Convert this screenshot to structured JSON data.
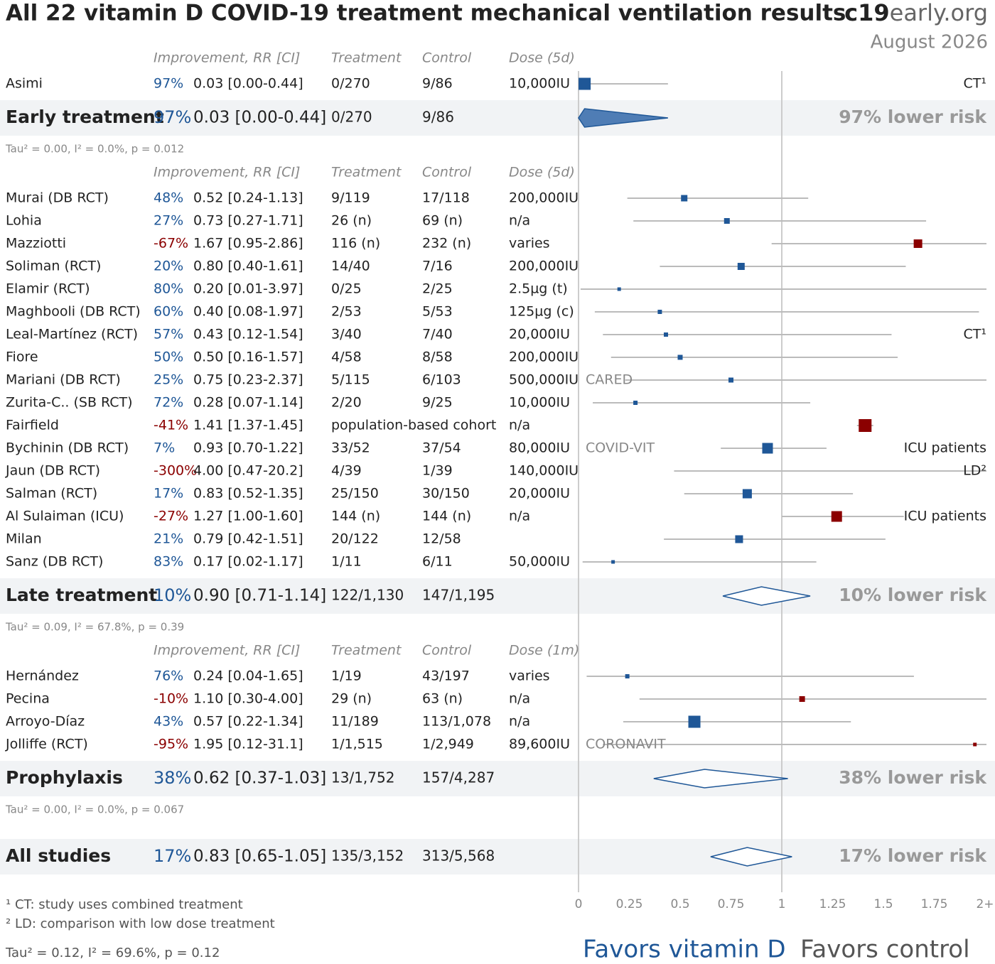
{
  "chart_data": {
    "type": "forest",
    "title": "All 22 vitamin D COVID-19 treatment mechanical ventilation results",
    "site_bold": "c19",
    "site_rest": "early.org",
    "date": "August 2026",
    "xlim": [
      0,
      2
    ],
    "xticks": [
      0,
      0.25,
      0.5,
      0.75,
      1,
      1.25,
      1.5,
      1.75,
      {
        "value": 2,
        "label": "2+"
      }
    ],
    "colors": {
      "favor": "#1f5797",
      "against": "#8b0000",
      "ci": "#bbbbbb"
    },
    "groups": [
      {
        "headers": [
          "Improvement, RR [CI]",
          "Treatment",
          "Control",
          "Dose (5d)"
        ],
        "studies": [
          {
            "name": "Asimi",
            "improvement": "97%",
            "rr": 0.03,
            "lo": 0.0,
            "hi": 0.44,
            "label": "0.03 [0.00-0.44]",
            "treatment": "0/270",
            "control": "9/86",
            "dose": "10,000IU",
            "remark": "CT¹",
            "weight": 17
          }
        ],
        "summary": {
          "name": "Early treatment",
          "improvement": "97%",
          "rr": 0.03,
          "lo": 0.0,
          "hi": 0.44,
          "label": "0.03 [0.00-0.44]",
          "treatment": "0/270",
          "control": "9/86",
          "risk": "97% lower risk"
        },
        "tau": "Tau² = 0.00, I² = 0.0%, p = 0.012"
      },
      {
        "headers": [
          "Improvement, RR [CI]",
          "Treatment",
          "Control",
          "Dose (5d)"
        ],
        "studies": [
          {
            "name": "Murai (DB RCT)",
            "improvement": "48%",
            "rr": 0.52,
            "lo": 0.24,
            "hi": 1.13,
            "label": "0.52 [0.24-1.13]",
            "treatment": "9/119",
            "control": "17/118",
            "dose": "200,000IU",
            "weight": 9
          },
          {
            "name": "Lohia",
            "improvement": "27%",
            "rr": 0.73,
            "lo": 0.27,
            "hi": 1.71,
            "label": "0.73 [0.27-1.71]",
            "treatment": "26 (n)",
            "control": "69 (n)",
            "dose": "n/a",
            "weight": 8
          },
          {
            "name": "Mazziotti",
            "improvement": "-67%",
            "rr": 1.67,
            "lo": 0.95,
            "hi": 2.86,
            "label": "1.67 [0.95-2.86]",
            "treatment": "116 (n)",
            "control": "232 (n)",
            "dose": "varies",
            "weight": 12
          },
          {
            "name": "Soliman (RCT)",
            "improvement": "20%",
            "rr": 0.8,
            "lo": 0.4,
            "hi": 1.61,
            "label": "0.80 [0.40-1.61]",
            "treatment": "14/40",
            "control": "7/16",
            "dose": "200,000IU",
            "weight": 10
          },
          {
            "name": "Elamir (RCT)",
            "improvement": "80%",
            "rr": 0.2,
            "lo": 0.01,
            "hi": 3.97,
            "label": "0.20 [0.01-3.97]",
            "treatment": "0/25",
            "control": "2/25",
            "dose": "2.5µg (t)",
            "weight": 5
          },
          {
            "name": "Maghbooli (DB RCT)",
            "improvement": "60%",
            "rr": 0.4,
            "lo": 0.08,
            "hi": 1.97,
            "label": "0.40 [0.08-1.97]",
            "treatment": "2/53",
            "control": "5/53",
            "dose": "125µg (c)",
            "weight": 6
          },
          {
            "name": "Leal-Martínez (RCT)",
            "improvement": "57%",
            "rr": 0.43,
            "lo": 0.12,
            "hi": 1.54,
            "label": "0.43 [0.12-1.54]",
            "treatment": "3/40",
            "control": "7/40",
            "dose": "20,000IU",
            "remark": "CT¹",
            "weight": 6
          },
          {
            "name": "Fiore",
            "improvement": "50%",
            "rr": 0.5,
            "lo": 0.16,
            "hi": 1.57,
            "label": "0.50 [0.16-1.57]",
            "treatment": "4/58",
            "control": "8/58",
            "dose": "200,000IU",
            "weight": 7
          },
          {
            "name": "Mariani (DB RCT)",
            "improvement": "25%",
            "rr": 0.75,
            "lo": 0.23,
            "hi": 2.37,
            "label": "0.75 [0.23-2.37]",
            "treatment": "5/115",
            "control": "6/103",
            "dose": "500,000IU",
            "note": "CARED",
            "weight": 7
          },
          {
            "name": "Zurita-C.. (SB RCT)",
            "improvement": "72%",
            "rr": 0.28,
            "lo": 0.07,
            "hi": 1.14,
            "label": "0.28 [0.07-1.14]",
            "treatment": "2/20",
            "control": "9/25",
            "dose": "10,000IU",
            "weight": 6
          },
          {
            "name": "Fairfield",
            "improvement": "-41%",
            "rr": 1.41,
            "lo": 1.37,
            "hi": 1.45,
            "label": "1.41 [1.37-1.45]",
            "treatment": "population-based cohort",
            "dose": "n/a",
            "weight": 18
          },
          {
            "name": "Bychinin (DB RCT)",
            "improvement": "7%",
            "rr": 0.93,
            "lo": 0.7,
            "hi": 1.22,
            "label": "0.93 [0.70-1.22]",
            "treatment": "33/52",
            "control": "37/54",
            "dose": "80,000IU",
            "note": "COVID-VIT",
            "remark": "ICU patients",
            "weight": 15
          },
          {
            "name": "Jaun (DB RCT)",
            "improvement": "-300%",
            "rr": 4.0,
            "lo": 0.47,
            "hi": 20.2,
            "label": "4.00 [0.47-20.2]",
            "treatment": "4/39",
            "control": "1/39",
            "dose": "140,000IU",
            "remark": "LD²",
            "weight": 5
          },
          {
            "name": "Salman (RCT)",
            "improvement": "17%",
            "rr": 0.83,
            "lo": 0.52,
            "hi": 1.35,
            "label": "0.83 [0.52-1.35]",
            "treatment": "25/150",
            "control": "30/150",
            "dose": "20,000IU",
            "weight": 13
          },
          {
            "name": "Al Sulaiman (ICU)",
            "improvement": "-27%",
            "rr": 1.27,
            "lo": 1.0,
            "hi": 1.6,
            "label": "1.27 [1.00-1.60]",
            "treatment": "144 (n)",
            "control": "144 (n)",
            "dose": "n/a",
            "remark": "ICU patients",
            "weight": 15
          },
          {
            "name": "Milan",
            "improvement": "21%",
            "rr": 0.79,
            "lo": 0.42,
            "hi": 1.51,
            "label": "0.79 [0.42-1.51]",
            "treatment": "20/122",
            "control": "12/58",
            "weight": 11
          },
          {
            "name": "Sanz (DB RCT)",
            "improvement": "83%",
            "rr": 0.17,
            "lo": 0.02,
            "hi": 1.17,
            "label": "0.17 [0.02-1.17]",
            "treatment": "1/11",
            "control": "6/11",
            "dose": "50,000IU",
            "weight": 5
          }
        ],
        "summary": {
          "name": "Late treatment",
          "improvement": "10%",
          "rr": 0.9,
          "lo": 0.71,
          "hi": 1.14,
          "label": "0.90 [0.71-1.14]",
          "treatment": "122/1,130",
          "control": "147/1,195",
          "risk": "10% lower risk"
        },
        "tau": "Tau² = 0.09, I² = 67.8%, p = 0.39"
      },
      {
        "headers": [
          "Improvement, RR [CI]",
          "Treatment",
          "Control",
          "Dose (1m)"
        ],
        "studies": [
          {
            "name": "Hernández",
            "improvement": "76%",
            "rr": 0.24,
            "lo": 0.04,
            "hi": 1.65,
            "label": "0.24 [0.04-1.65]",
            "treatment": "1/19",
            "control": "43/197",
            "dose": "varies",
            "weight": 6
          },
          {
            "name": "Pecina",
            "improvement": "-10%",
            "rr": 1.1,
            "lo": 0.3,
            "hi": 4.0,
            "label": "1.10 [0.30-4.00]",
            "treatment": "29 (n)",
            "control": "63 (n)",
            "dose": "n/a",
            "weight": 8
          },
          {
            "name": "Arroyo-Díaz",
            "improvement": "43%",
            "rr": 0.57,
            "lo": 0.22,
            "hi": 1.34,
            "label": "0.57 [0.22-1.34]",
            "treatment": "11/189",
            "control": "113/1,078",
            "dose": "n/a",
            "weight": 17
          },
          {
            "name": "Jolliffe (RCT)",
            "improvement": "-95%",
            "rr": 1.95,
            "lo": 0.12,
            "hi": 31.1,
            "label": "1.95 [0.12-31.1]",
            "treatment": "1/1,515",
            "control": "1/2,949",
            "dose": "89,600IU",
            "note": "CORONAVIT",
            "weight": 5
          }
        ],
        "summary": {
          "name": "Prophylaxis",
          "improvement": "38%",
          "rr": 0.62,
          "lo": 0.37,
          "hi": 1.03,
          "label": "0.62 [0.37-1.03]",
          "treatment": "13/1,752",
          "control": "157/4,287",
          "risk": "38% lower risk"
        },
        "tau": "Tau² = 0.00, I² = 0.0%, p = 0.067"
      }
    ],
    "overall": {
      "name": "All studies",
      "improvement": "17%",
      "rr": 0.83,
      "lo": 0.65,
      "hi": 1.05,
      "label": "0.83 [0.65-1.05]",
      "treatment": "135/3,152",
      "control": "313/5,568",
      "risk": "17% lower risk"
    },
    "footnotes": [
      "¹ CT: study uses combined treatment",
      "² LD: comparison with low dose treatment"
    ],
    "overall_tau": "Tau² = 0.12, I² = 69.6%, p = 0.12",
    "favors_left": "Favors vitamin D",
    "favors_right": "Favors control"
  }
}
